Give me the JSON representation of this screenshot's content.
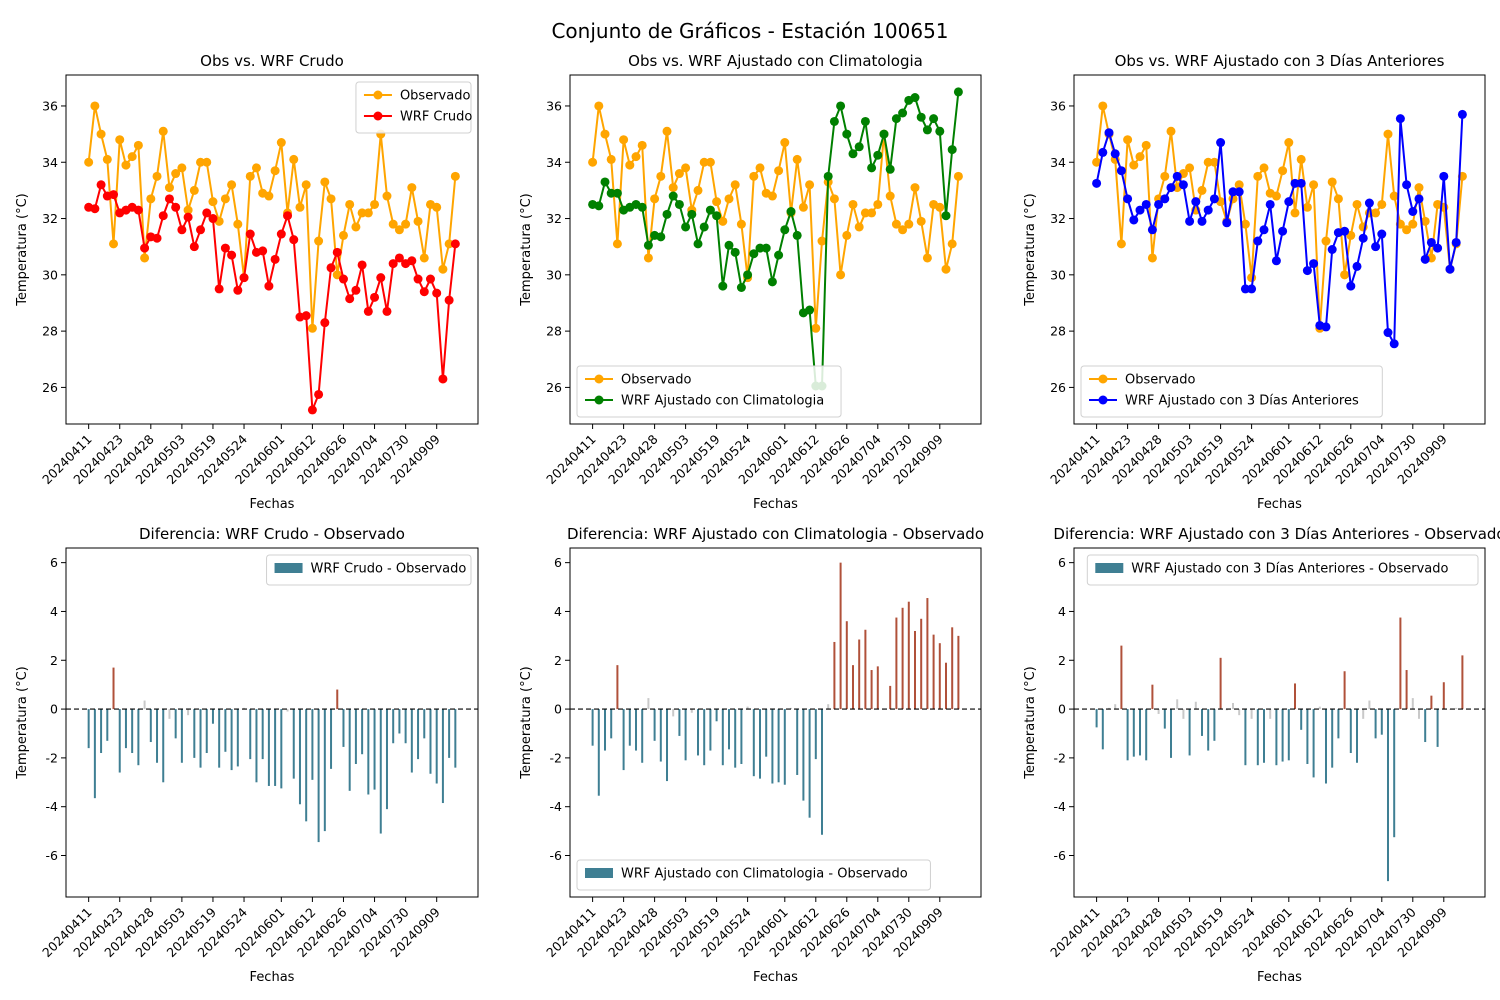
{
  "figure_title": "Conjunto de Gráficos - Estación 100651",
  "colors": {
    "observed": "#FFA500",
    "wrf_crudo": "#FF0000",
    "wrf_clima": "#008000",
    "wrf_3dias": "#0000FF",
    "bar_negative": "#3f7f93",
    "bar_positive": "#b0513a",
    "bar_small": "#c9c9c9"
  },
  "chart_data": [
    {
      "id": "p1",
      "type": "line",
      "title": "Obs vs. WRF Crudo",
      "xlabel": "Fechas",
      "ylabel": "Temperatura (°C)",
      "ylim": [
        24.7,
        37.1
      ],
      "yticks": [
        26,
        28,
        30,
        32,
        34,
        36
      ],
      "xtick_labels": [
        "20240411",
        "20240423",
        "20240428",
        "20240503",
        "20240519",
        "20240524",
        "20240601",
        "20240612",
        "20240626",
        "20240704",
        "20240730",
        "20240909"
      ],
      "legend_loc": "upper right",
      "series": [
        {
          "name": "Observado",
          "color_key": "observed",
          "values": [
            34.0,
            36.0,
            35.0,
            34.1,
            31.1,
            34.8,
            33.9,
            34.2,
            34.6,
            30.6,
            32.7,
            33.5,
            35.1,
            33.1,
            33.6,
            33.8,
            32.3,
            33.0,
            34.0,
            34.0,
            32.6,
            31.9,
            32.7,
            33.2,
            31.8,
            29.9,
            33.5,
            33.8,
            32.9,
            32.8,
            33.7,
            34.7,
            32.2,
            34.1,
            32.4,
            33.2,
            28.1,
            31.2,
            33.3,
            32.7,
            30.0,
            31.4,
            32.5,
            31.7,
            32.2,
            32.2,
            32.5,
            35.0,
            32.8,
            31.8,
            31.6,
            31.8,
            33.1,
            31.9,
            30.6,
            32.5,
            32.4,
            30.2,
            31.1,
            33.5
          ]
        },
        {
          "name": "WRF Crudo",
          "color_key": "wrf_crudo",
          "values": [
            32.4,
            32.35,
            33.2,
            32.8,
            32.85,
            32.2,
            32.3,
            32.4,
            32.3,
            30.95,
            31.35,
            31.3,
            32.1,
            32.7,
            32.4,
            31.6,
            32.05,
            31.0,
            31.6,
            32.2,
            32.0,
            29.5,
            30.95,
            30.7,
            29.45,
            29.9,
            31.45,
            30.8,
            30.85,
            29.6,
            30.55,
            31.45,
            32.1,
            31.25,
            28.5,
            28.55,
            25.2,
            25.75,
            28.3,
            30.25,
            30.8,
            29.85,
            29.15,
            29.45,
            30.35,
            28.7,
            29.2,
            29.9,
            28.7,
            30.4,
            30.6,
            30.4,
            30.5,
            29.85,
            29.4,
            29.85,
            29.35,
            26.3,
            29.1,
            31.1
          ]
        }
      ]
    },
    {
      "id": "p2",
      "type": "line",
      "title": "Obs vs. WRF Ajustado con Climatologia",
      "xlabel": "Fechas",
      "ylabel": "Temperatura (°C)",
      "ylim": [
        24.7,
        37.1
      ],
      "yticks": [
        26,
        28,
        30,
        32,
        34,
        36
      ],
      "xtick_labels": [
        "20240411",
        "20240423",
        "20240428",
        "20240503",
        "20240519",
        "20240524",
        "20240601",
        "20240612",
        "20240626",
        "20240704",
        "20240730",
        "20240909"
      ],
      "legend_loc": "lower left",
      "series": [
        {
          "name": "Observado",
          "color_key": "observed",
          "values": [
            34.0,
            36.0,
            35.0,
            34.1,
            31.1,
            34.8,
            33.9,
            34.2,
            34.6,
            30.6,
            32.7,
            33.5,
            35.1,
            33.1,
            33.6,
            33.8,
            32.3,
            33.0,
            34.0,
            34.0,
            32.6,
            31.9,
            32.7,
            33.2,
            31.8,
            29.9,
            33.5,
            33.8,
            32.9,
            32.8,
            33.7,
            34.7,
            32.2,
            34.1,
            32.4,
            33.2,
            28.1,
            31.2,
            33.3,
            32.7,
            30.0,
            31.4,
            32.5,
            31.7,
            32.2,
            32.2,
            32.5,
            35.0,
            32.8,
            31.8,
            31.6,
            31.8,
            33.1,
            31.9,
            30.6,
            32.5,
            32.4,
            30.2,
            31.1,
            33.5
          ]
        },
        {
          "name": "WRF Ajustado con Climatologia",
          "color_key": "wrf_clima",
          "values": [
            32.5,
            32.45,
            33.3,
            32.9,
            32.9,
            32.3,
            32.4,
            32.5,
            32.4,
            31.05,
            31.4,
            31.35,
            32.15,
            32.8,
            32.5,
            31.7,
            32.15,
            31.1,
            31.7,
            32.3,
            32.1,
            29.6,
            31.05,
            30.8,
            29.55,
            30.0,
            30.75,
            30.95,
            30.95,
            29.75,
            30.7,
            31.6,
            32.25,
            31.4,
            28.65,
            28.75,
            26.05,
            26.05,
            33.5,
            35.45,
            36.0,
            35.0,
            34.3,
            34.55,
            35.45,
            33.8,
            34.25,
            35.0,
            33.75,
            35.55,
            35.75,
            36.2,
            36.3,
            35.6,
            35.15,
            35.55,
            35.1,
            32.1,
            34.45,
            36.5
          ]
        }
      ]
    },
    {
      "id": "p3",
      "type": "line",
      "title": "Obs vs. WRF Ajustado con 3 Días Anteriores",
      "xlabel": "Fechas",
      "ylabel": "Temperatura (°C)",
      "ylim": [
        24.7,
        37.1
      ],
      "yticks": [
        26,
        28,
        30,
        32,
        34,
        36
      ],
      "xtick_labels": [
        "20240411",
        "20240423",
        "20240428",
        "20240503",
        "20240519",
        "20240524",
        "20240601",
        "20240612",
        "20240626",
        "20240704",
        "20240730",
        "20240909"
      ],
      "legend_loc": "lower left",
      "series": [
        {
          "name": "Observado",
          "color_key": "observed",
          "values": [
            34.0,
            36.0,
            35.0,
            34.1,
            31.1,
            34.8,
            33.9,
            34.2,
            34.6,
            30.6,
            32.7,
            33.5,
            35.1,
            33.1,
            33.6,
            33.8,
            32.3,
            33.0,
            34.0,
            34.0,
            32.6,
            31.9,
            32.7,
            33.2,
            31.8,
            29.9,
            33.5,
            33.8,
            32.9,
            32.8,
            33.7,
            34.7,
            32.2,
            34.1,
            32.4,
            33.2,
            28.1,
            31.2,
            33.3,
            32.7,
            30.0,
            31.4,
            32.5,
            31.7,
            32.2,
            32.2,
            32.5,
            35.0,
            32.8,
            31.8,
            31.6,
            31.8,
            33.1,
            31.9,
            30.6,
            32.5,
            32.4,
            30.2,
            31.1,
            33.5
          ]
        },
        {
          "name": "WRF Ajustado con 3 Días Anteriores",
          "color_key": "wrf_3dias",
          "values": [
            33.25,
            34.35,
            35.05,
            34.3,
            33.7,
            32.7,
            31.95,
            32.3,
            32.5,
            31.6,
            32.5,
            32.7,
            33.1,
            33.5,
            33.2,
            31.9,
            32.6,
            31.9,
            32.3,
            32.7,
            34.7,
            31.85,
            32.95,
            32.95,
            29.5,
            29.5,
            31.2,
            31.6,
            32.5,
            30.5,
            31.55,
            32.6,
            33.25,
            33.25,
            30.15,
            30.4,
            28.2,
            28.15,
            30.9,
            31.5,
            31.55,
            29.6,
            30.3,
            31.3,
            32.55,
            31.0,
            31.45,
            27.95,
            27.55,
            35.55,
            33.2,
            32.25,
            32.7,
            30.55,
            31.15,
            30.95,
            33.5,
            30.2,
            31.15,
            35.7
          ]
        }
      ]
    },
    {
      "id": "p4",
      "type": "bar",
      "title": "Diferencia: WRF Crudo - Observado",
      "xlabel": "Fechas",
      "ylabel": "Temperatura (°C)",
      "ylim": [
        -7.7,
        6.6
      ],
      "yticks": [
        -6,
        -4,
        -2,
        0,
        2,
        4,
        6
      ],
      "xtick_labels": [
        "20240411",
        "20240423",
        "20240428",
        "20240503",
        "20240519",
        "20240524",
        "20240601",
        "20240612",
        "20240626",
        "20240704",
        "20240730",
        "20240909"
      ],
      "legend_loc": "upper right",
      "series_name": "WRF Crudo - Observado",
      "values": [
        -1.6,
        -3.65,
        -1.8,
        -1.3,
        1.7,
        -2.6,
        -1.6,
        -1.8,
        -2.3,
        0.35,
        -1.35,
        -2.2,
        -3.0,
        -0.4,
        -1.2,
        -2.2,
        -0.25,
        -2.0,
        -2.4,
        -1.8,
        -0.6,
        -2.4,
        -1.75,
        -2.5,
        -2.35,
        0.05,
        -2.05,
        -3.0,
        -2.05,
        -3.15,
        -3.15,
        -3.25,
        -0.1,
        -2.85,
        -3.9,
        -4.6,
        -2.9,
        -5.45,
        -5.0,
        -2.45,
        0.8,
        -1.55,
        -3.35,
        -2.25,
        -1.85,
        -3.5,
        -3.3,
        -5.1,
        -4.1,
        -1.4,
        -1.0,
        -1.4,
        -2.6,
        -2.05,
        -1.2,
        -2.65,
        -3.05,
        -3.85,
        -2.0,
        -2.4
      ]
    },
    {
      "id": "p5",
      "type": "bar",
      "title": "Diferencia: WRF Ajustado con Climatologia - Observado",
      "xlabel": "Fechas",
      "ylabel": "Temperatura (°C)",
      "ylim": [
        -7.7,
        6.6
      ],
      "yticks": [
        -6,
        -4,
        -2,
        0,
        2,
        4,
        6
      ],
      "xtick_labels": [
        "20240411",
        "20240423",
        "20240428",
        "20240503",
        "20240519",
        "20240524",
        "20240601",
        "20240612",
        "20240626",
        "20240704",
        "20240730",
        "20240909"
      ],
      "legend_loc": "lower left",
      "series_name": "WRF Ajustado con Climatologia - Observado",
      "values": [
        -1.5,
        -3.55,
        -1.7,
        -1.2,
        1.8,
        -2.5,
        -1.5,
        -1.7,
        -2.2,
        0.45,
        -1.3,
        -2.15,
        -2.95,
        -0.3,
        -1.1,
        -2.1,
        -0.15,
        -1.9,
        -2.3,
        -1.7,
        -0.5,
        -2.3,
        -1.65,
        -2.4,
        -2.25,
        0.1,
        -2.75,
        -2.85,
        -1.95,
        -3.05,
        -3.0,
        -3.1,
        0.05,
        -2.7,
        -3.75,
        -4.45,
        -2.05,
        -5.15,
        0.2,
        2.75,
        6.0,
        3.6,
        1.8,
        2.85,
        3.25,
        1.6,
        1.75,
        0.0,
        0.95,
        3.75,
        4.15,
        4.4,
        3.2,
        3.7,
        4.55,
        3.05,
        2.7,
        1.9,
        3.35,
        3.0
      ]
    },
    {
      "id": "p6",
      "type": "bar",
      "title": "Diferencia: WRF Ajustado con 3 Días Anteriores - Observado",
      "xlabel": "Fechas",
      "ylabel": "Temperatura (°C)",
      "ylim": [
        -7.7,
        6.6
      ],
      "yticks": [
        -6,
        -4,
        -2,
        0,
        2,
        4,
        6
      ],
      "xtick_labels": [
        "20240411",
        "20240423",
        "20240428",
        "20240503",
        "20240519",
        "20240524",
        "20240601",
        "20240612",
        "20240626",
        "20240704",
        "20240730",
        "20240909"
      ],
      "legend_loc": "upper right",
      "series_name": "WRF Ajustado con 3 Días Anteriores - Observado",
      "values": [
        -0.75,
        -1.65,
        0.05,
        0.2,
        2.6,
        -2.1,
        -1.95,
        -1.9,
        -2.1,
        1.0,
        -0.2,
        -0.8,
        -2.0,
        0.4,
        -0.4,
        -1.9,
        0.3,
        -1.1,
        -1.7,
        -1.3,
        2.1,
        -0.05,
        0.25,
        -0.25,
        -2.3,
        -0.4,
        -2.3,
        -2.2,
        -0.4,
        -2.3,
        -2.15,
        -2.1,
        1.05,
        -0.85,
        -2.25,
        -2.8,
        0.1,
        -3.05,
        -2.4,
        -1.2,
        1.55,
        -1.8,
        -2.2,
        -0.4,
        0.35,
        -1.2,
        -1.05,
        -7.05,
        -5.25,
        3.75,
        1.6,
        0.45,
        -0.4,
        -1.35,
        0.55,
        -1.55,
        1.1,
        0.0,
        0.05,
        2.2
      ]
    }
  ]
}
